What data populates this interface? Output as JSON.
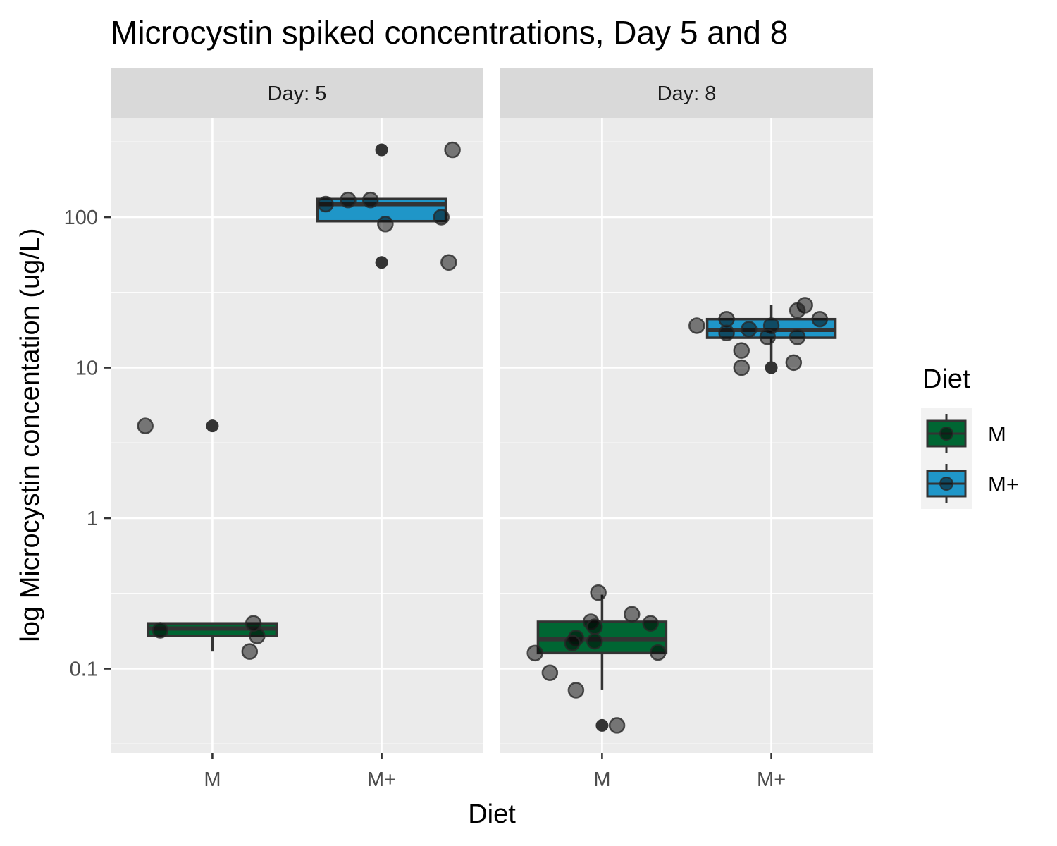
{
  "chart_data": {
    "type": "box",
    "title": "Microcystin spiked concentrations, Day 5 and 8",
    "xlabel": "Diet",
    "ylabel": "log Microcystin concentation (ug/L)",
    "y_scale": "log10",
    "ylim": [
      0.03,
      600
    ],
    "y_ticks": [
      {
        "value": 0.1,
        "label": "0.1"
      },
      {
        "value": 1,
        "label": "1"
      },
      {
        "value": 10,
        "label": "10"
      },
      {
        "value": 100,
        "label": "100"
      }
    ],
    "categories": [
      "M",
      "M+"
    ],
    "legend": {
      "title": "Diet",
      "position": "right",
      "entries": [
        {
          "label": "M",
          "color": "#006633"
        },
        {
          "label": "M+",
          "color": "#1f96c8"
        }
      ]
    },
    "panels": [
      {
        "label": "Day: 5",
        "boxes": [
          {
            "category": "M",
            "color": "#006633",
            "q1": 0.165,
            "median": 0.185,
            "q3": 0.2,
            "whisker_low": 0.13,
            "whisker_high": 0.2,
            "outliers": [
              4.1
            ],
            "points": [
              {
                "x_offset": -0.18,
                "y": 4.1
              },
              {
                "x_offset": -0.14,
                "y": 0.18
              },
              {
                "x_offset": 0.1,
                "y": 0.13
              },
              {
                "x_offset": 0.12,
                "y": 0.165
              },
              {
                "x_offset": 0.11,
                "y": 0.2
              }
            ]
          },
          {
            "category": "M+",
            "color": "#1f96c8",
            "q1": 94,
            "median": 122,
            "q3": 132,
            "whisker_low": 94,
            "whisker_high": 132,
            "outliers": [
              280,
              50
            ],
            "points": [
              {
                "x_offset": 0.19,
                "y": 280
              },
              {
                "x_offset": -0.15,
                "y": 122
              },
              {
                "x_offset": -0.09,
                "y": 130
              },
              {
                "x_offset": -0.03,
                "y": 130
              },
              {
                "x_offset": 0.16,
                "y": 100
              },
              {
                "x_offset": 0.01,
                "y": 90
              },
              {
                "x_offset": 0.18,
                "y": 50
              }
            ]
          }
        ]
      },
      {
        "label": "Day: 8",
        "boxes": [
          {
            "category": "M",
            "color": "#006633",
            "q1": 0.127,
            "median": 0.157,
            "q3": 0.205,
            "whisker_low": 0.072,
            "whisker_high": 0.31,
            "outliers": [
              0.042
            ],
            "points": [
              {
                "x_offset": -0.01,
                "y": 0.32
              },
              {
                "x_offset": 0.08,
                "y": 0.23
              },
              {
                "x_offset": -0.03,
                "y": 0.205
              },
              {
                "x_offset": 0.13,
                "y": 0.2
              },
              {
                "x_offset": -0.02,
                "y": 0.19
              },
              {
                "x_offset": -0.07,
                "y": 0.16
              },
              {
                "x_offset": -0.08,
                "y": 0.148
              },
              {
                "x_offset": -0.02,
                "y": 0.152
              },
              {
                "x_offset": -0.18,
                "y": 0.127
              },
              {
                "x_offset": 0.15,
                "y": 0.128
              },
              {
                "x_offset": -0.14,
                "y": 0.094
              },
              {
                "x_offset": -0.07,
                "y": 0.072
              },
              {
                "x_offset": 0.04,
                "y": 0.042
              }
            ]
          },
          {
            "category": "M+",
            "color": "#1f96c8",
            "q1": 15.8,
            "median": 17.8,
            "q3": 21,
            "whisker_low": 10,
            "whisker_high": 26,
            "outliers": [
              10
            ],
            "points": [
              {
                "x_offset": 0.09,
                "y": 26
              },
              {
                "x_offset": 0.07,
                "y": 24
              },
              {
                "x_offset": -0.12,
                "y": 21
              },
              {
                "x_offset": 0.13,
                "y": 21
              },
              {
                "x_offset": -0.2,
                "y": 19
              },
              {
                "x_offset": 0.0,
                "y": 19
              },
              {
                "x_offset": -0.06,
                "y": 18
              },
              {
                "x_offset": -0.12,
                "y": 17
              },
              {
                "x_offset": 0.07,
                "y": 16
              },
              {
                "x_offset": -0.01,
                "y": 16
              },
              {
                "x_offset": -0.08,
                "y": 13
              },
              {
                "x_offset": 0.06,
                "y": 10.8
              },
              {
                "x_offset": -0.08,
                "y": 10
              }
            ]
          }
        ]
      }
    ]
  }
}
